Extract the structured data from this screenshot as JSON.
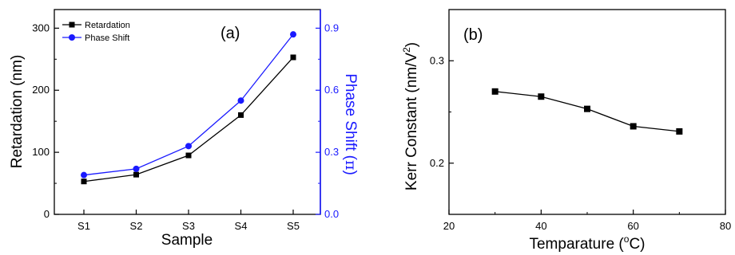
{
  "colors": {
    "series_a1": "#000000",
    "series_a2": "#1a1aff",
    "axis_right": "#1a1aff",
    "series_b": "#000000"
  },
  "chart_data": [
    {
      "panel_label": "(a)",
      "type": "line",
      "categories": [
        "S1",
        "S2",
        "S3",
        "S4",
        "S5"
      ],
      "xlabel": "Sample",
      "ylabel": "Retardation (nm)",
      "ylabel_right_main": "Phase Shift (",
      "ylabel_right_symbol": "π",
      "ylabel_right_close": ")",
      "ylim": [
        0,
        330
      ],
      "yticks": [
        "0",
        "100",
        "200",
        "300"
      ],
      "ylim_right": [
        0,
        0.99
      ],
      "yticks_right": [
        "0.0",
        "0.3",
        "0.6",
        "0.9"
      ],
      "grid": false,
      "legend": "top-left",
      "series": [
        {
          "name": "Retardation",
          "axis": "left",
          "marker": "square",
          "values": [
            53,
            64,
            95,
            160,
            253
          ]
        },
        {
          "name": "Phase Shift",
          "axis": "right",
          "marker": "circle",
          "values": [
            0.19,
            0.22,
            0.33,
            0.55,
            0.87
          ]
        }
      ]
    },
    {
      "panel_label": "(b)",
      "type": "line",
      "xlabel_main": "Temparature (",
      "xlabel_sup": "o",
      "xlabel_unit": "C)",
      "ylabel_main": "Kerr Constant (nm/V",
      "ylabel_sup": "2",
      "ylabel_close": ")",
      "xlim": [
        20,
        80
      ],
      "xticks": [
        "20",
        "40",
        "60",
        "80"
      ],
      "ylim": [
        0.15,
        0.35
      ],
      "yticks": [
        "0.2",
        "0.3"
      ],
      "grid": false,
      "series": [
        {
          "marker": "square",
          "x": [
            30,
            40,
            50,
            60,
            70
          ],
          "y": [
            0.27,
            0.265,
            0.253,
            0.236,
            0.231
          ]
        }
      ]
    }
  ]
}
